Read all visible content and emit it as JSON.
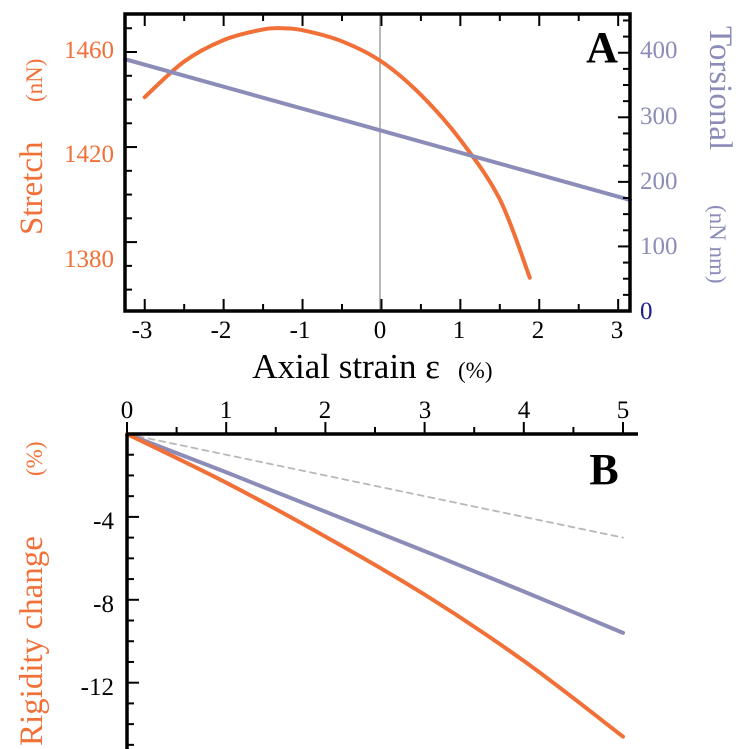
{
  "colors": {
    "stretch": "#f07038",
    "torsional": "#8c8cb8",
    "torsional_zero_tick": "#1c1c8c",
    "reference_line": "#b8b8b8",
    "axes": "#000000"
  },
  "chart_data": [
    {
      "panel": "A",
      "type": "line",
      "xlabel": "Axial strain ε",
      "xunit": "(%)",
      "ylabel_left": "Stretch",
      "ylabel_left_unit": "(nN)",
      "ylabel_right": "Torsional",
      "ylabel_right_unit": "(nN nm)",
      "xlim": [
        -3.25,
        3.15
      ],
      "ylim_left": [
        1351,
        1476
      ],
      "ylim_right": [
        0,
        460
      ],
      "xticks": [
        "-3",
        "-2",
        "-1",
        "0",
        "1",
        "2",
        "3"
      ],
      "yticks_left": [
        "1380",
        "1420",
        "1460"
      ],
      "yticks_right": [
        "0",
        "100",
        "200",
        "300",
        "400"
      ],
      "vertical_reference_x": 0,
      "series": [
        {
          "key": "stretch",
          "axis": "left",
          "x": [
            -3.0,
            -2.5,
            -2.0,
            -1.5,
            -1.25,
            -1.0,
            -0.5,
            0.0,
            0.5,
            1.0,
            1.5,
            1.88
          ],
          "y": [
            1441,
            1456,
            1465,
            1469.5,
            1470,
            1469.2,
            1464.5,
            1456,
            1442,
            1423,
            1398,
            1365
          ]
        },
        {
          "key": "torsional",
          "axis": "right",
          "x": [
            -3.25,
            3.15
          ],
          "y": [
            390,
            172
          ]
        }
      ]
    },
    {
      "panel": "B",
      "type": "line",
      "ylabel": "Rigidity change",
      "yunit": "(%)",
      "xlim": [
        0,
        5
      ],
      "ylim": [
        -15.2,
        0
      ],
      "xticks": [
        "0",
        "1",
        "2",
        "3",
        "4",
        "5"
      ],
      "yticks": [
        "-4",
        "-8",
        "-12"
      ],
      "series": [
        {
          "key": "reference",
          "style": "dashed",
          "x": [
            0,
            5
          ],
          "y": [
            0,
            -5
          ]
        },
        {
          "key": "torsional",
          "x": [
            0,
            1,
            2,
            3,
            4,
            5
          ],
          "y": [
            0,
            -1.85,
            -3.75,
            -5.65,
            -7.6,
            -9.6
          ]
        },
        {
          "key": "stretch",
          "x": [
            0,
            1,
            2,
            3,
            4,
            5
          ],
          "y": [
            0,
            -2.35,
            -4.95,
            -7.75,
            -10.95,
            -14.6
          ]
        }
      ]
    }
  ]
}
